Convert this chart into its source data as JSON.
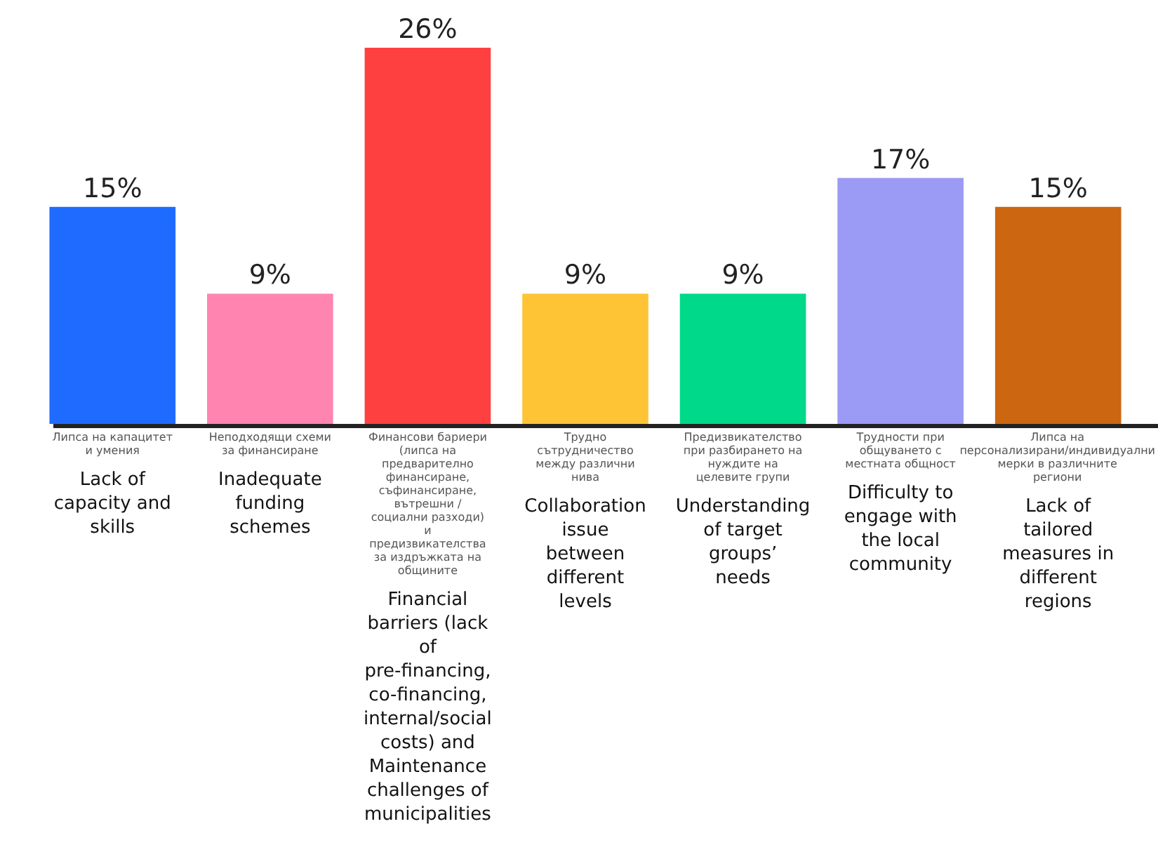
{
  "chart_data": {
    "type": "bar",
    "categories": [
      "Липса на капацитет и умения",
      "Неподходящи схеми за финансиране",
      "Финансови бариери (липса на предварително финансиране, съфинансиране, вътрешни / социални разходи) и предизвикателства за издръжката на общините",
      "Трудно сътрудничество между различни нива",
      "Предизвикателство при разбирането на нуждите на целевите групи",
      "Трудности при общуването с местната общност",
      "Липса на персонализирани/индивидуални мерки в различните региони"
    ],
    "values": [
      15,
      9,
      26,
      9,
      9,
      17,
      15
    ],
    "value_labels": [
      "15%",
      "9%",
      "26%",
      "9%",
      "9%",
      "17%",
      "15%"
    ],
    "colors": [
      "#1f6bff",
      "#ff85b0",
      "#ff4040",
      "#ffc435",
      "#00d98a",
      "#9b9bf5",
      "#cc6611"
    ],
    "annotations": [
      "Lack of capacity and skills",
      "Inadequate funding schemes",
      "Financial barriers (lack of pre-financing, co-financing, internal/social costs) and Maintenance challenges of municipalities",
      "Collaboration issue between different levels",
      "Understanding of target groups’ needs",
      "Difficulty to engage with the local community",
      "Lack of tailored measures in different regions"
    ]
  }
}
